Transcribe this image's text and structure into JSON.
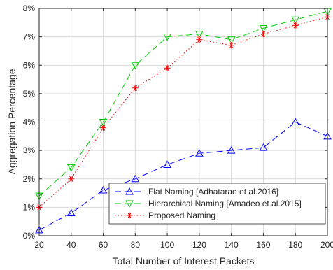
{
  "chart_data": {
    "type": "line",
    "title": "",
    "xlabel": "Total Number of Interest Packets",
    "ylabel": "Aggregation Percentage",
    "x": [
      20,
      40,
      60,
      80,
      100,
      120,
      140,
      160,
      180,
      200
    ],
    "xlim": [
      20,
      200
    ],
    "ylim": [
      0,
      8
    ],
    "xticks": [
      "20",
      "40",
      "60",
      "80",
      "100",
      "120",
      "140",
      "160",
      "180",
      "200"
    ],
    "yticks": [
      "0%",
      "1%",
      "2%",
      "3%",
      "4%",
      "5%",
      "6%",
      "7%",
      "8%"
    ],
    "grid": true,
    "legend_position": "lower-right",
    "series": [
      {
        "name": "Flat Naming [Adhatarao et al.2016]",
        "values": [
          0.2,
          0.8,
          1.6,
          2.0,
          2.5,
          2.9,
          3.0,
          3.1,
          4.0,
          3.5
        ],
        "color": "#0000ff",
        "dash": "dashed",
        "marker": "triangle-up"
      },
      {
        "name": "Hierarchical Naming [Amadeo et al.2015]",
        "values": [
          1.4,
          2.4,
          4.0,
          6.0,
          7.0,
          7.1,
          6.9,
          7.3,
          7.6,
          7.9
        ],
        "color": "#00cc00",
        "dash": "dashed",
        "marker": "triangle-down"
      },
      {
        "name": "Proposed Naming",
        "values": [
          1.0,
          2.0,
          3.8,
          5.2,
          5.9,
          6.9,
          6.7,
          7.1,
          7.4,
          7.7
        ],
        "color": "#ff0000",
        "dash": "dotted",
        "marker": "asterisk"
      }
    ]
  }
}
